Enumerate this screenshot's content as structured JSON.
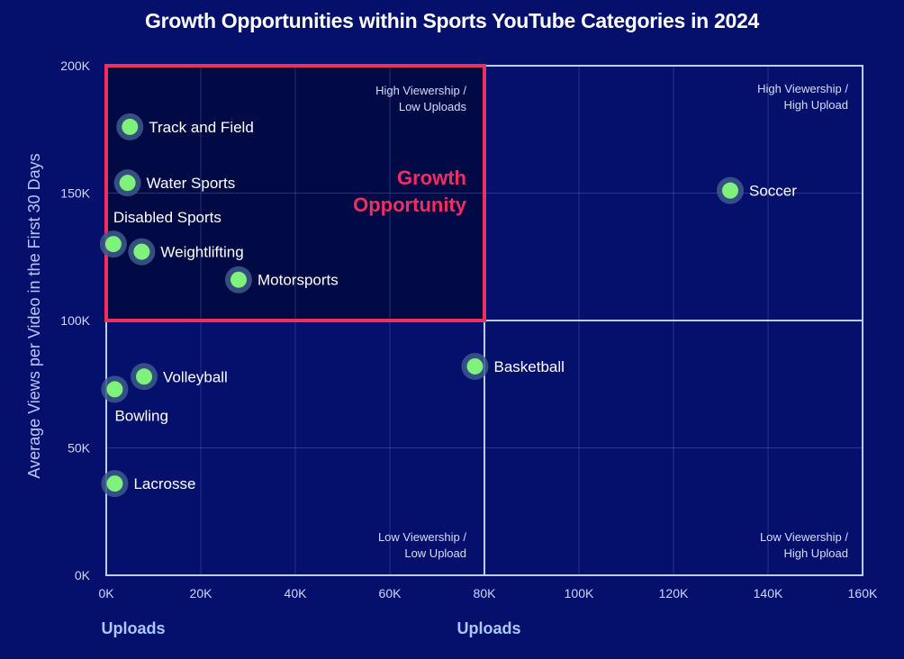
{
  "chart_data": {
    "type": "scatter",
    "title": "Growth Opportunities within Sports YouTube Categories in 2024",
    "xlabel": "Uploads",
    "ylabel": "Average Views per Video in the First 30 Days",
    "xlim": [
      0,
      160000
    ],
    "ylim": [
      0,
      200000
    ],
    "x_ticks": [
      "0K",
      "20K",
      "40K",
      "60K",
      "80K",
      "100K",
      "120K",
      "140K",
      "160K"
    ],
    "y_ticks": [
      "0K",
      "50K",
      "100K",
      "150K",
      "200K"
    ],
    "grid": true,
    "quadrant_dividers": {
      "x": 80000,
      "y": 100000
    },
    "quadrant_labels": [
      {
        "quadrant": "top-left",
        "lines": [
          "High Viewership /",
          "Low Uploads"
        ]
      },
      {
        "quadrant": "top-right",
        "lines": [
          "High Viewership /",
          "High Upload"
        ]
      },
      {
        "quadrant": "bottom-left",
        "lines": [
          "Low Viewership /",
          "Low Upload"
        ]
      },
      {
        "quadrant": "bottom-right",
        "lines": [
          "Low Viewership /",
          "High Upload"
        ]
      }
    ],
    "highlight": {
      "label_lines": [
        "Growth",
        "Opportunity"
      ],
      "x_range": [
        0,
        80000
      ],
      "y_range": [
        100000,
        200000
      ]
    },
    "points": [
      {
        "label": "Track and Field",
        "x": 5000,
        "y": 176000
      },
      {
        "label": "Water Sports",
        "x": 4500,
        "y": 154000
      },
      {
        "label": "Disabled Sports",
        "x": 1500,
        "y": 130000
      },
      {
        "label": "Weightlifting",
        "x": 7500,
        "y": 127000
      },
      {
        "label": "Motorsports",
        "x": 28000,
        "y": 116000
      },
      {
        "label": "Soccer",
        "x": 132000,
        "y": 151000
      },
      {
        "label": "Basketball",
        "x": 78000,
        "y": 82000
      },
      {
        "label": "Volleyball",
        "x": 8000,
        "y": 78000
      },
      {
        "label": "Bowling",
        "x": 1800,
        "y": 73000
      },
      {
        "label": "Lacrosse",
        "x": 1800,
        "y": 36000
      }
    ],
    "colors": {
      "background": "#04106b",
      "point": "#7ef27a",
      "point_halo": "#3c5a8a",
      "highlight": "#ee2f60",
      "grid": "#5b6fc0",
      "divider": "#b7d0ff"
    }
  }
}
